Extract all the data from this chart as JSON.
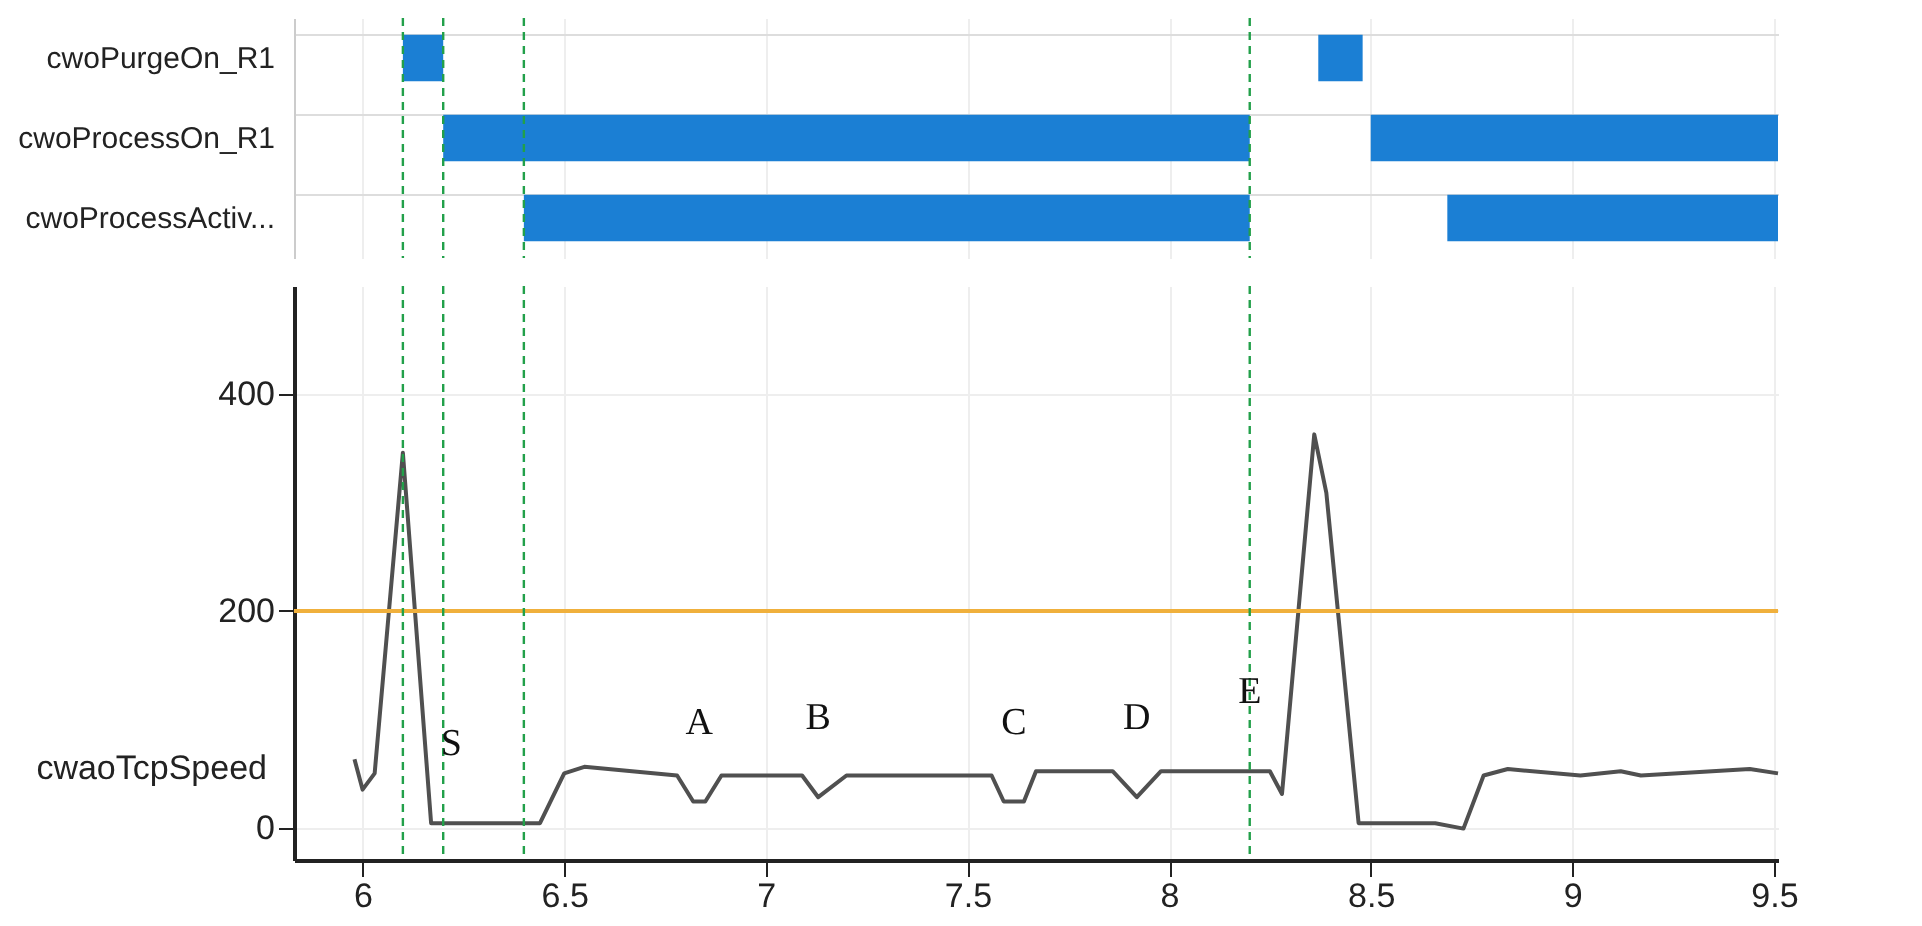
{
  "chart_data": [
    {
      "type": "bar",
      "orientation": "horizontal",
      "categories": [
        "cwoPurgeOn_R1",
        "cwoProcessOn_R1",
        "cwoProcessActiv..."
      ],
      "series": [
        {
          "color": "#1b7fd4",
          "base": [
            6.1,
            6.2,
            6.4
          ],
          "values": [
            0.1,
            2.0,
            1.8
          ]
        },
        {
          "color": "#1b7fd4",
          "base": [
            8.37,
            8.5,
            8.69
          ],
          "values": [
            0.11,
            1.01,
            0.82
          ]
        }
      ],
      "xlim": [
        5.83,
        9.51
      ],
      "xticks": [
        6,
        6.5,
        7,
        7.5,
        8,
        8.5,
        9,
        9.5
      ],
      "grid": "x",
      "tick_labels": "y",
      "ref_lines": [
        {
          "axis": "x",
          "value": 6.1,
          "color": "#22a04a",
          "line_style": "dashed"
        },
        {
          "axis": "x",
          "value": 6.2,
          "color": "#22a04a",
          "line_style": "dashed"
        },
        {
          "axis": "x",
          "value": 6.4,
          "color": "#22a04a",
          "line_style": "dashed"
        },
        {
          "axis": "x",
          "value": 8.2,
          "color": "#22a04a",
          "line_style": "dashed"
        }
      ]
    },
    {
      "type": "line",
      "ylabel": "cwaoTcpSpeed",
      "x": [
        5.98,
        6.0,
        6.03,
        6.1,
        6.17,
        6.44,
        6.5,
        6.55,
        6.78,
        6.82,
        6.85,
        6.89,
        7.09,
        7.13,
        7.2,
        7.56,
        7.59,
        7.64,
        7.67,
        7.86,
        7.92,
        7.98,
        8.25,
        8.28,
        8.36,
        8.39,
        8.47,
        8.66,
        8.73,
        8.78,
        8.84,
        9.02,
        9.12,
        9.17,
        9.44,
        9.51
      ],
      "series": [
        {
          "color": "#505050",
          "values": [
            63,
            35,
            50,
            346,
            4,
            4,
            50,
            56,
            48,
            24,
            24,
            48,
            48,
            28,
            48,
            48,
            24,
            24,
            52,
            52,
            28,
            52,
            52,
            31,
            363,
            309,
            4,
            4,
            -1,
            48,
            54,
            48,
            52,
            48,
            54,
            50
          ]
        }
      ],
      "xlim": [
        5.83,
        9.51
      ],
      "xticks": [
        6,
        6.5,
        7,
        7.5,
        8,
        8.5,
        9,
        9.5
      ],
      "ylim": [
        -30,
        500
      ],
      "yticks": [
        0,
        200,
        400
      ],
      "grid": true,
      "marker": "none",
      "line_style": "solid",
      "ref_lines": [
        {
          "axis": "y",
          "value": 200,
          "color": "#f0b03c",
          "line_style": "solid"
        },
        {
          "axis": "x",
          "value": 6.1,
          "color": "#22a04a",
          "line_style": "dashed"
        },
        {
          "axis": "x",
          "value": 6.2,
          "color": "#22a04a",
          "line_style": "dashed"
        },
        {
          "axis": "x",
          "value": 6.4,
          "color": "#22a04a",
          "line_style": "dashed"
        },
        {
          "axis": "x",
          "value": 8.2,
          "color": "#22a04a",
          "line_style": "dashed"
        }
      ],
      "annotations": [
        {
          "text": "S",
          "x": 6.22,
          "y": 4
        },
        {
          "text": "A",
          "x": 6.835,
          "y": 24
        },
        {
          "text": "B",
          "x": 7.13,
          "y": 28
        },
        {
          "text": "C",
          "x": 7.615,
          "y": 24
        },
        {
          "text": "D",
          "x": 7.92,
          "y": 28
        },
        {
          "text": "E",
          "x": 8.2,
          "y": 52
        }
      ]
    }
  ]
}
